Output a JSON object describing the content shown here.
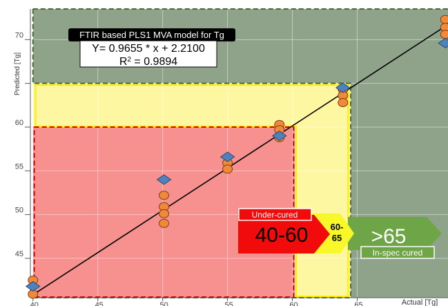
{
  "chart_data": {
    "type": "scatter",
    "xlabel": "Actual [Tg]",
    "ylabel": "Predicted [Tg]",
    "xlim": [
      39.8,
      72.0
    ],
    "ylim": [
      40.5,
      73.5
    ],
    "xticks": [
      40,
      45,
      50,
      55,
      60,
      65
    ],
    "yticks": [
      45,
      50,
      55,
      60,
      65,
      70
    ],
    "ytick_labels": [
      "45",
      "50",
      "55",
      "60",
      "",
      "70"
    ],
    "xtick_labels": [
      "40",
      "45",
      "50",
      "55",
      "60",
      "65"
    ],
    "grid": true,
    "regression": {
      "slope": 0.9655,
      "intercept": 2.21,
      "x_range": [
        40,
        72
      ]
    },
    "zones": [
      {
        "name": "in-spec-cured",
        "x": [
          40,
          72
        ],
        "y": [
          65,
          73.5
        ],
        "color": "#8fa38a"
      },
      {
        "name": "in-spec-cured",
        "x": [
          64.5,
          72
        ],
        "y": [
          40.5,
          73.5
        ],
        "color": "#8fa38a"
      },
      {
        "name": "transition",
        "x": [
          40,
          64.5
        ],
        "y": [
          60,
          65
        ],
        "color": "#fdf7a2"
      },
      {
        "name": "transition",
        "x": [
          60.2,
          64.5
        ],
        "y": [
          40.5,
          65
        ],
        "color": "#fdf7a2"
      },
      {
        "name": "under-cured",
        "x": [
          40,
          60.2
        ],
        "y": [
          40.5,
          60
        ],
        "color": "#f6918f"
      }
    ],
    "series": [
      {
        "marker": "circle",
        "color": "#f08a3a",
        "points": [
          [
            40,
            42.5
          ],
          [
            40,
            40.9
          ],
          [
            50.1,
            52.2
          ],
          [
            50.1,
            50.9
          ],
          [
            50.1,
            50.1
          ],
          [
            50.1,
            49.0
          ],
          [
            55.0,
            55.9
          ],
          [
            55.0,
            55.2
          ],
          [
            59.0,
            60.3
          ],
          [
            59.0,
            59.7
          ],
          [
            59.0,
            58.8
          ],
          [
            63.9,
            64.3
          ],
          [
            63.9,
            63.6
          ],
          [
            63.9,
            62.8
          ],
          [
            71.8,
            72.3
          ],
          [
            71.8,
            71.4
          ],
          [
            71.8,
            70.6
          ]
        ]
      },
      {
        "marker": "diamond",
        "color": "#4f81bd",
        "points": [
          [
            40,
            41.8
          ],
          [
            50.1,
            54.0
          ],
          [
            55.0,
            56.6
          ],
          [
            59.0,
            59.0
          ],
          [
            63.9,
            64.5
          ],
          [
            71.8,
            69.6
          ]
        ]
      }
    ]
  },
  "model_box": {
    "title": "FTIR based PLS1 MVA model for Tg",
    "equation": "Y= 0.9655 * x + 2.2100",
    "r2_base": "R",
    "r2_exp": "2",
    "r2_rest": " = 0.9894"
  },
  "status_arrows": {
    "under_tag": "Under-cured",
    "under_range": "40-60",
    "mid_line1": "60-",
    "mid_line2": "65",
    "cured_range": ">65",
    "cured_tag": "In-spec cured"
  },
  "colors": {
    "under_red": "#f20b0b",
    "mid_yellow": "#f7f72a",
    "cured_green": "#6ea546",
    "fit_line": "#000000"
  }
}
